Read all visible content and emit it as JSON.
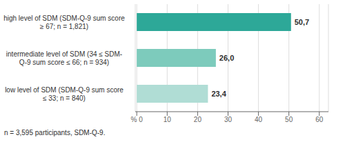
{
  "chart_data": {
    "type": "bar",
    "orientation": "horizontal",
    "categories": [
      "high level of SDM (SDM-Q-9 sum score\n≥ 67; n = 1,821)",
      "intermediate level of SDM (34 ≤ SDM-\nQ-9 sum score ≤ 66; n = 934)",
      "low level of SDM (SDM-Q-9 sum score\n≤ 33; n = 840)"
    ],
    "values": [
      50.7,
      26.0,
      23.4
    ],
    "value_labels": [
      "50,7",
      "26,0",
      "23,4"
    ],
    "data_labels": true,
    "colors": [
      "#2da898",
      "#7dcbbc",
      "#b0ddd5"
    ],
    "xlim": [
      -0.5,
      63
    ],
    "xticks": [
      {
        "value": 0,
        "label": "% 0"
      },
      10,
      20,
      30,
      40,
      50,
      60
    ],
    "grid": true,
    "annotations": [
      "n = 3,595 participants, SDM-Q-9."
    ]
  }
}
